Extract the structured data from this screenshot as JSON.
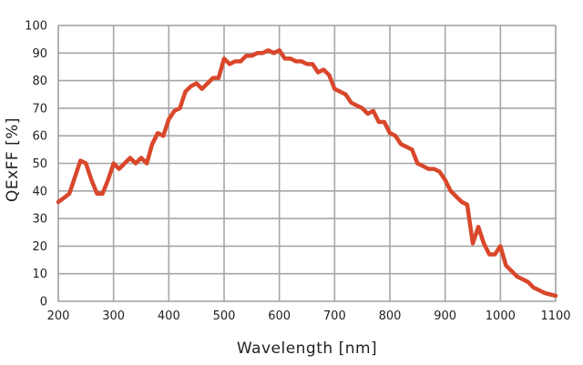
{
  "chart_data": {
    "type": "line",
    "title": "",
    "xlabel": "Wavelength [nm]",
    "ylabel": "QExFF [%]",
    "xlim": [
      200,
      1100
    ],
    "ylim": [
      0,
      100
    ],
    "x_ticks": [
      "200",
      "300",
      "400",
      "500",
      "600",
      "700",
      "800",
      "900",
      "1000",
      "1100"
    ],
    "y_ticks": [
      "0",
      "10",
      "20",
      "30",
      "40",
      "50",
      "60",
      "70",
      "80",
      "90",
      "100"
    ],
    "grid": true,
    "legend": "none",
    "series": [
      {
        "color": "#d9472b",
        "x": [
          200,
          210,
          220,
          230,
          240,
          250,
          260,
          270,
          280,
          290,
          300,
          310,
          320,
          330,
          340,
          350,
          360,
          370,
          380,
          390,
          400,
          410,
          420,
          430,
          440,
          450,
          460,
          470,
          480,
          490,
          500,
          510,
          520,
          530,
          540,
          550,
          560,
          570,
          580,
          590,
          600,
          610,
          620,
          630,
          640,
          650,
          660,
          670,
          680,
          690,
          700,
          710,
          720,
          730,
          740,
          750,
          760,
          770,
          780,
          790,
          800,
          810,
          820,
          830,
          840,
          850,
          860,
          870,
          880,
          890,
          900,
          910,
          920,
          930,
          940,
          950,
          960,
          970,
          980,
          990,
          1000,
          1010,
          1020,
          1030,
          1040,
          1050,
          1060,
          1070,
          1080,
          1090,
          1100
        ],
        "y": [
          36,
          37.5,
          39,
          45,
          51,
          50,
          44,
          39,
          39,
          44,
          50,
          48,
          50,
          52,
          50,
          52,
          50,
          57,
          61,
          60,
          66,
          69,
          70,
          76,
          78,
          79,
          77,
          79,
          81,
          81,
          88,
          86,
          87,
          87,
          89,
          89,
          90,
          90,
          91,
          90,
          91,
          88,
          88,
          87,
          87,
          86,
          86,
          83,
          84,
          82,
          77,
          76,
          75,
          72,
          71,
          70,
          68,
          69,
          65,
          65,
          61,
          60,
          57,
          56,
          55,
          50,
          49,
          48,
          48,
          47,
          44,
          40,
          38,
          36,
          35,
          21,
          27,
          21,
          17,
          17,
          20,
          13,
          11,
          9,
          8,
          7,
          5,
          4,
          3,
          2.5,
          2
        ]
      }
    ]
  }
}
